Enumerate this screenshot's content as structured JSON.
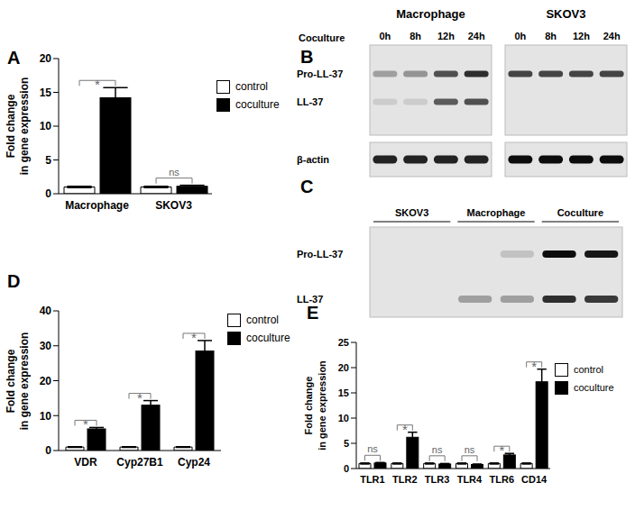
{
  "chart_data": [
    {
      "type": "bar",
      "panel": "A",
      "categories": [
        "Macrophage",
        "SKOV3"
      ],
      "series": [
        {
          "name": "control",
          "color": "#ffffff",
          "values": [
            1,
            1
          ],
          "error": [
            0.1,
            0.1
          ]
        },
        {
          "name": "coculture",
          "color": "#000000",
          "values": [
            14.2,
            1.1
          ],
          "error": [
            1.5,
            0.15
          ]
        }
      ],
      "ylabel": [
        "Fold change",
        "in gene expression"
      ],
      "ylim": [
        0,
        20
      ],
      "yticks": [
        0,
        5,
        10,
        15,
        20
      ],
      "significance": [
        "*",
        "ns"
      ],
      "legend": "right"
    },
    {
      "type": "bar",
      "panel": "D",
      "categories": [
        "VDR",
        "Cyp27B1",
        "Cyp24"
      ],
      "series": [
        {
          "name": "control",
          "color": "#ffffff",
          "values": [
            1,
            1,
            1
          ],
          "error": [
            0.1,
            0.1,
            0.1
          ]
        },
        {
          "name": "coculture",
          "color": "#000000",
          "values": [
            6.2,
            13,
            28.5
          ],
          "error": [
            0.4,
            1.3,
            3
          ]
        }
      ],
      "ylabel": [
        "Fold change",
        "in gene expression"
      ],
      "ylim": [
        0,
        40
      ],
      "yticks": [
        0,
        10,
        20,
        30,
        40
      ],
      "significance": [
        "*",
        "*",
        "*"
      ],
      "legend": "right"
    },
    {
      "type": "bar",
      "panel": "E",
      "categories": [
        "TLR1",
        "TLR2",
        "TLR3",
        "TLR4",
        "TLR6",
        "CD14"
      ],
      "series": [
        {
          "name": "control",
          "color": "#ffffff",
          "values": [
            1,
            1,
            1,
            1,
            1,
            1
          ],
          "error": [
            0.1,
            0.1,
            0.1,
            0.1,
            0.1,
            0.1
          ]
        },
        {
          "name": "coculture",
          "color": "#000000",
          "values": [
            1.1,
            6.2,
            0.9,
            0.8,
            2.7,
            17.2
          ],
          "error": [
            0.1,
            1,
            0.1,
            0.1,
            0.3,
            2.5
          ]
        }
      ],
      "ylabel": [
        "Fold change",
        "in gene expression"
      ],
      "ylim": [
        0,
        25
      ],
      "yticks": [
        0,
        5,
        10,
        15,
        20,
        25
      ],
      "significance": [
        "ns",
        "*",
        "ns",
        "ns",
        "*",
        "*"
      ],
      "legend": "right"
    }
  ],
  "blots": [
    {
      "panel": "B",
      "header": "Coculture",
      "rows": [
        "Pro-LL-37",
        "LL-37"
      ],
      "loading_row": "β-actin",
      "groups": [
        {
          "title": "Macrophage",
          "lanes": [
            "0h",
            "8h",
            "12h",
            "24h"
          ],
          "intensity": [
            [
              0.3,
              0.35,
              0.65,
              0.8
            ],
            [
              0.1,
              0.1,
              0.6,
              0.65
            ]
          ],
          "loading_intensity": [
            0.85,
            0.85,
            0.85,
            0.85
          ]
        },
        {
          "title": "SKOV3",
          "lanes": [
            "0h",
            "8h",
            "12h",
            "24h"
          ],
          "intensity": [
            [
              0.7,
              0.7,
              0.7,
              0.7
            ],
            [
              0,
              0,
              0,
              0
            ]
          ],
          "loading_intensity": [
            0.95,
            0.95,
            0.95,
            0.95
          ]
        }
      ]
    },
    {
      "panel": "C",
      "rows": [
        "Pro-LL-37",
        "LL-37"
      ],
      "groups": [
        {
          "title": "SKOV3",
          "intensity": [
            [
              0,
              0
            ],
            [
              0,
              0
            ]
          ]
        },
        {
          "title": "Macrophage",
          "intensity": [
            [
              0,
              0.15
            ],
            [
              0.3,
              0.3
            ]
          ]
        },
        {
          "title": "Coculture",
          "intensity": [
            [
              0.95,
              0.9
            ],
            [
              0.8,
              0.75
            ]
          ]
        }
      ]
    }
  ]
}
